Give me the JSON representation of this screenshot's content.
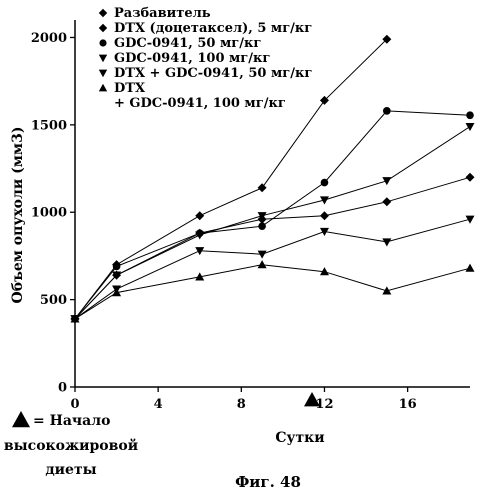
{
  "chart_data": {
    "type": "line",
    "title": "",
    "xlabel": "Сутки",
    "ylabel": "Объем опухоли (мм3)",
    "xlim": [
      0,
      19
    ],
    "ylim": [
      0,
      2100
    ],
    "xticks": [
      0,
      4,
      8,
      12,
      16
    ],
    "yticks": [
      0,
      500,
      1000,
      1500,
      2000
    ],
    "x_tick_labels": [
      "0",
      "4",
      "8",
      "12",
      "16"
    ],
    "y_tick_labels": [
      "0",
      "500",
      "1000",
      "1500",
      "2000"
    ],
    "grid": false,
    "legend_position": "top-left",
    "series": [
      {
        "name": "Разбавитель",
        "marker": "diamond",
        "x": [
          0,
          2,
          6,
          9,
          12,
          15
        ],
        "y": [
          390,
          700,
          980,
          1140,
          1640,
          1990
        ]
      },
      {
        "name": "DTX (доцетаксел), 5 мг/кг",
        "marker": "diamond",
        "x": [
          0,
          2,
          6,
          9,
          12,
          15,
          19
        ],
        "y": [
          390,
          640,
          880,
          960,
          980,
          1060,
          1200
        ]
      },
      {
        "name": "GDC-0941, 50 мг/кг",
        "marker": "circle",
        "x": [
          0,
          2,
          6,
          9,
          12,
          15,
          19
        ],
        "y": [
          390,
          690,
          880,
          920,
          1170,
          1580,
          1555
        ]
      },
      {
        "name": "GDC-0941, 100 мг/кг",
        "marker": "triangle-down",
        "x": [
          0,
          2,
          6,
          9,
          12,
          15,
          19
        ],
        "y": [
          390,
          640,
          870,
          980,
          1070,
          1180,
          1490
        ]
      },
      {
        "name": "DTX + GDC-0941, 50 мг/кг",
        "marker": "triangle-down",
        "x": [
          0,
          2,
          6,
          9,
          12,
          15,
          19
        ],
        "y": [
          390,
          560,
          780,
          760,
          890,
          830,
          960
        ]
      },
      {
        "name": "DTX\n+ GDC-0941, 100 мг/кг",
        "marker": "triangle-up",
        "x": [
          0,
          2,
          6,
          9,
          12,
          15,
          19
        ],
        "y": [
          390,
          540,
          630,
          700,
          660,
          550,
          680
        ]
      }
    ],
    "annotations": [
      {
        "marker": "triangle-up",
        "x": 11.4,
        "y": 0,
        "legend": "= Начало\nвысокожировой\nдиеты"
      }
    ]
  },
  "figure_caption": "Фиг. 48",
  "marker_color": "#000000"
}
